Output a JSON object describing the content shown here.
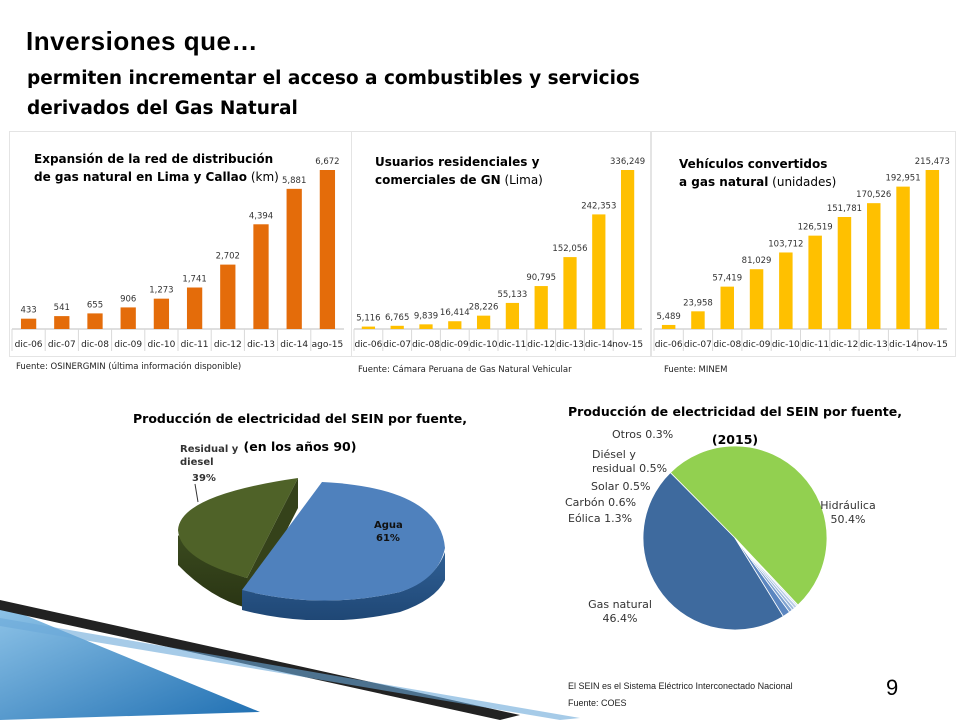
{
  "header": {
    "title": "Inversiones que…",
    "subtitle": "permiten incrementar el acceso a combustibles y servicios derivados del Gas Natural"
  },
  "colors": {
    "orange": "#E46C0A",
    "yellow": "#FFC000",
    "agua": "#4F81BD",
    "residual": "#4F6228",
    "hidraulica": "#92D050",
    "gas": "#3E6A9E"
  },
  "chart_data": [
    {
      "type": "bar",
      "title_bold": "Expansión de la red de distribución de gas natural en Lima y Callao",
      "title_normal": " (km)",
      "categories": [
        "dic-06",
        "dic-07",
        "dic-08",
        "dic-09",
        "dic-10",
        "dic-11",
        "dic-12",
        "dic-13",
        "dic-14",
        "ago-15"
      ],
      "values": [
        433,
        541,
        655,
        906,
        1273,
        1741,
        2702,
        4394,
        5881,
        6672
      ],
      "labels": [
        "433",
        "541",
        "655",
        "906",
        "1,273",
        "1,741",
        "2,702",
        "4,394",
        "5,881",
        "6,672"
      ],
      "ylim": [
        0,
        6672
      ],
      "color": "#E46C0A",
      "source": "Fuente: OSINERGMIN (última información disponible)"
    },
    {
      "type": "bar",
      "title_bold": "Usuarios residenciales y comerciales de GN",
      "title_normal": " (Lima)",
      "categories": [
        "dic-06",
        "dic-07",
        "dic-08",
        "dic-09",
        "dic-10",
        "dic-11",
        "dic-12",
        "dic-13",
        "dic-14",
        "nov-15"
      ],
      "values": [
        5116,
        6765,
        9839,
        16414,
        28226,
        55133,
        90795,
        152056,
        242353,
        336249
      ],
      "labels": [
        "5,116",
        "6,765",
        "9,839",
        "16,414",
        "28,226",
        "55,133",
        "90,795",
        "152,056",
        "242,353",
        "336,249"
      ],
      "ylim": [
        0,
        336249
      ],
      "color": "#FFC000",
      "source": "Fuente: Cámara Peruana de Gas Natural Vehicular"
    },
    {
      "type": "bar",
      "title_bold": "Vehículos convertidos a gas natural",
      "title_normal": " (unidades)",
      "categories": [
        "dic-06",
        "dic-07",
        "dic-08",
        "dic-09",
        "dic-10",
        "dic-11",
        "dic-12",
        "dic-13",
        "dic-14",
        "nov-15"
      ],
      "values": [
        5489,
        23958,
        57419,
        81029,
        103712,
        126519,
        151781,
        170526,
        192951,
        215473
      ],
      "labels": [
        "5,489",
        "23,958",
        "57,419",
        "81,029",
        "103,712",
        "126,519",
        "151,781",
        "170,526",
        "192,951",
        "215,473"
      ],
      "ylim": [
        0,
        215473
      ],
      "color": "#FFC000",
      "source": "Fuente: MINEM"
    },
    {
      "type": "pie",
      "title_line1": "Producción de electricidad del SEIN por fuente,",
      "title_line2": "(en los años 90)",
      "slices": [
        {
          "name": "Agua",
          "value": 61,
          "label": "61%",
          "color": "#4F81BD"
        },
        {
          "name": "Residual y diesel",
          "value": 39,
          "label": "39%",
          "color": "#4F6228"
        }
      ]
    },
    {
      "type": "pie",
      "title_line1": "Producción de electricidad del SEIN por fuente,",
      "title_line2": "(2015)",
      "slices": [
        {
          "name": "Hidráulica",
          "value": 50.4,
          "label": "50.4%",
          "color": "#92D050"
        },
        {
          "name": "Gas natural",
          "value": 46.4,
          "label": "46.4%",
          "color": "#3E6A9E"
        },
        {
          "name": "Eólica",
          "value": 1.3,
          "label": "1.3%",
          "color": "#5B86C0"
        },
        {
          "name": "Carbón",
          "value": 0.6,
          "label": "0.6%",
          "color": "#7FA2D0"
        },
        {
          "name": "Solar",
          "value": 0.5,
          "label": "0.5%",
          "color": "#9DB8DC"
        },
        {
          "name": "Diésel y residual",
          "value": 0.5,
          "label": "0.5%",
          "color": "#B9CCE6"
        },
        {
          "name": "Otros",
          "value": 0.3,
          "label": "0.3%",
          "color": "#D3DFEF"
        }
      ]
    }
  ],
  "footer": {
    "note": "El SEIN es el Sistema Eléctrico Interconectado Nacional",
    "source": "Fuente: COES",
    "page": "9"
  }
}
